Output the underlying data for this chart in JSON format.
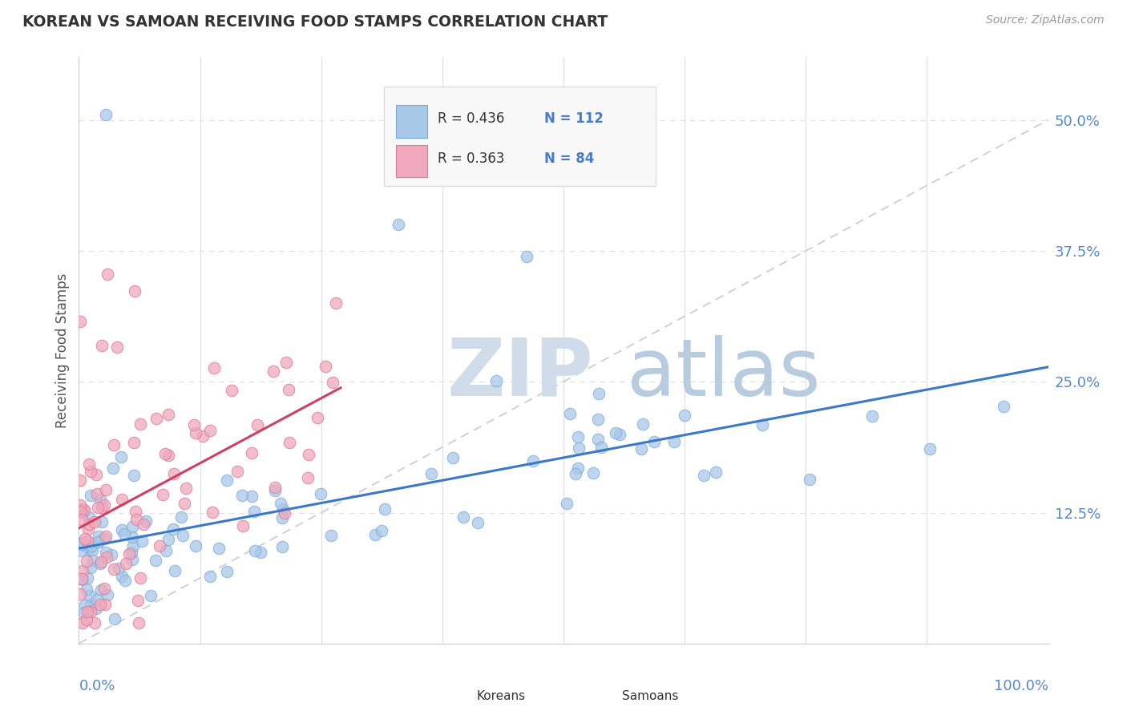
{
  "title": "KOREAN VS SAMOAN RECEIVING FOOD STAMPS CORRELATION CHART",
  "source": "Source: ZipAtlas.com",
  "ylabel": "Receiving Food Stamps",
  "ytick_labels": [
    "12.5%",
    "25.0%",
    "37.5%",
    "50.0%"
  ],
  "ytick_values": [
    12.5,
    25.0,
    37.5,
    50.0
  ],
  "xlim": [
    0,
    100
  ],
  "ylim": [
    0,
    56
  ],
  "korean_color": "#a8c8e8",
  "samoan_color": "#f0a8bc",
  "korean_edge_color": "#7aaddc",
  "samoan_edge_color": "#e07898",
  "korean_line_color": "#3a78c9",
  "samoan_line_color": "#d04060",
  "diag_color": "#c8c8d0",
  "legend_text_color": "#4a7cc7",
  "legend_R_color": "#333333",
  "watermark_zip_color": "#d0dcea",
  "watermark_atlas_color": "#b8cce0",
  "background_color": "#ffffff",
  "grid_color": "#e0e0e8",
  "title_color": "#333333",
  "source_color": "#999999",
  "ylabel_color": "#555555",
  "tick_label_color": "#5588cc",
  "legend_korean_R": "R = 0.436",
  "legend_korean_N": "N = 112",
  "legend_samoan_R": "R = 0.363",
  "legend_samoan_N": "N = 84",
  "legend_label_korean": "Koreans",
  "legend_label_samoan": "Samoans",
  "korean_seed": 42,
  "samoan_seed": 99
}
